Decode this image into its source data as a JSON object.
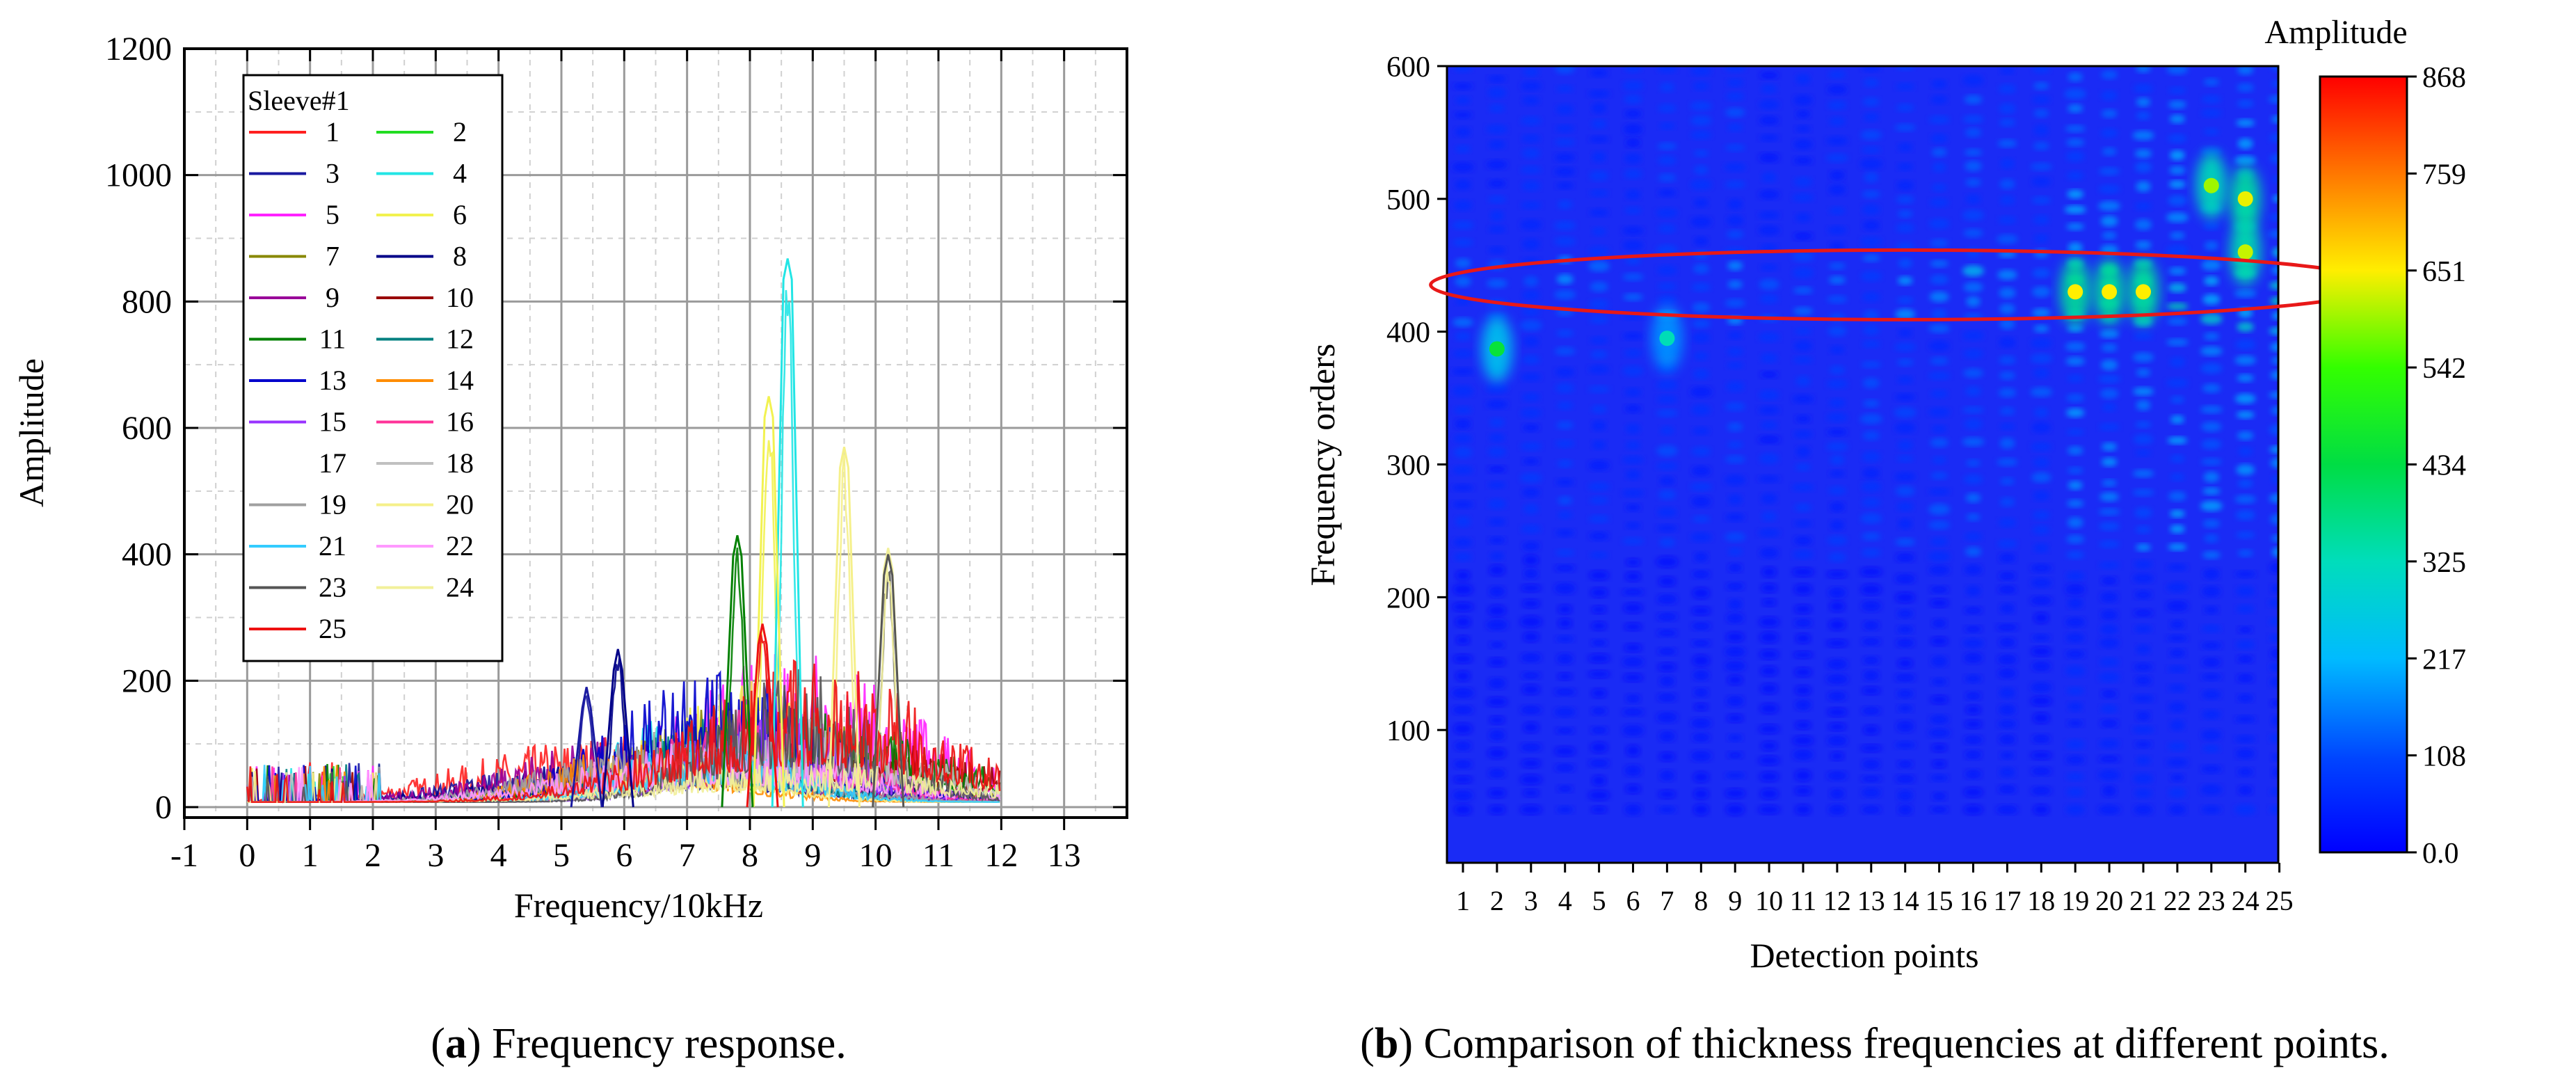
{
  "chart_data": [
    {
      "type": "line",
      "ylabel": "Amplitude",
      "xlabel": "Frequency/10kHz",
      "xlim": [
        -1,
        14
      ],
      "ylim": [
        0,
        1200
      ],
      "xticks": [
        "-1",
        "0",
        "1",
        "2",
        "3",
        "4",
        "5",
        "6",
        "7",
        "8",
        "9",
        "10",
        "11",
        "12",
        "13"
      ],
      "yticks": [
        "0",
        "200",
        "400",
        "600",
        "800",
        "1000",
        "1200"
      ],
      "grid": true,
      "legend": {
        "title": "Sleeve#1",
        "placement": "top-left",
        "entries": [
          {
            "label": "1",
            "color": "#ff2020"
          },
          {
            "label": "2",
            "color": "#22dd22"
          },
          {
            "label": "3",
            "color": "#1a1aa0"
          },
          {
            "label": "4",
            "color": "#22e5e5"
          },
          {
            "label": "5",
            "color": "#ff22ff"
          },
          {
            "label": "6",
            "color": "#f2f250"
          },
          {
            "label": "7",
            "color": "#888800"
          },
          {
            "label": "8",
            "color": "#000088"
          },
          {
            "label": "9",
            "color": "#990099"
          },
          {
            "label": "10",
            "color": "#990000"
          },
          {
            "label": "11",
            "color": "#008000"
          },
          {
            "label": "12",
            "color": "#008080"
          },
          {
            "label": "13",
            "color": "#0000cc"
          },
          {
            "label": "14",
            "color": "#ff8c00"
          },
          {
            "label": "15",
            "color": "#9933ff"
          },
          {
            "label": "16",
            "color": "#ff3399"
          },
          {
            "label": "17",
            "color": "#ffffff"
          },
          {
            "label": "18",
            "color": "#c0c0c0"
          },
          {
            "label": "19",
            "color": "#a0a0a0"
          },
          {
            "label": "20",
            "color": "#f5f08a"
          },
          {
            "label": "21",
            "color": "#33ccff"
          },
          {
            "label": "22",
            "color": "#ff99ff"
          },
          {
            "label": "23",
            "color": "#555555"
          },
          {
            "label": "24",
            "color": "#f2f09a"
          },
          {
            "label": "25",
            "color": "#ee1111"
          }
        ]
      },
      "peaks": [
        {
          "series": "4",
          "x": 8.6,
          "y": 868
        },
        {
          "series": "6",
          "x": 8.3,
          "y": 650
        },
        {
          "series": "20",
          "x": 9.5,
          "y": 570
        },
        {
          "series": "24",
          "x": 10.2,
          "y": 410
        },
        {
          "series": "23",
          "x": 10.2,
          "y": 400
        },
        {
          "series": "11",
          "x": 7.8,
          "y": 430
        },
        {
          "series": "8",
          "x": 5.9,
          "y": 250
        },
        {
          "series": "3",
          "x": 5.4,
          "y": 190
        },
        {
          "series": "25",
          "x": 8.2,
          "y": 290
        }
      ],
      "caption": {
        "letter": "a",
        "text": "Frequency response."
      }
    },
    {
      "type": "heatmap",
      "ylabel": "Frequency orders",
      "xlabel": "Detection points",
      "ylim": [
        0,
        600
      ],
      "yticks": [
        "100",
        "200",
        "300",
        "400",
        "500",
        "600"
      ],
      "xticks": [
        "1",
        "2",
        "3",
        "4",
        "5",
        "6",
        "7",
        "8",
        "9",
        "10",
        "11",
        "12",
        "13",
        "14",
        "15",
        "16",
        "17",
        "18",
        "19",
        "20",
        "21",
        "22",
        "23",
        "24",
        "25"
      ],
      "colorbar": {
        "title": "Amplitude",
        "min": 0,
        "max": 868,
        "ticks": [
          "0.0",
          "108",
          "217",
          "325",
          "434",
          "542",
          "651",
          "759",
          "868"
        ]
      },
      "annotation": {
        "shape": "ellipse",
        "color": "#e81818",
        "y_center": 430,
        "x_from": 0,
        "x_to": 25.5
      },
      "hotspots": [
        {
          "point": 19,
          "order": 430,
          "value": 651
        },
        {
          "point": 20,
          "order": 430,
          "value": 651
        },
        {
          "point": 21,
          "order": 430,
          "value": 651
        },
        {
          "point": 23,
          "order": 510,
          "value": 600
        },
        {
          "point": 24,
          "order": 500,
          "value": 640
        },
        {
          "point": 24,
          "order": 460,
          "value": 620
        },
        {
          "point": 2,
          "order": 387,
          "value": 450
        },
        {
          "point": 7,
          "order": 395,
          "value": 330
        }
      ],
      "caption": {
        "letter": "b",
        "text": "Comparison of thickness frequencies at different points."
      }
    }
  ]
}
